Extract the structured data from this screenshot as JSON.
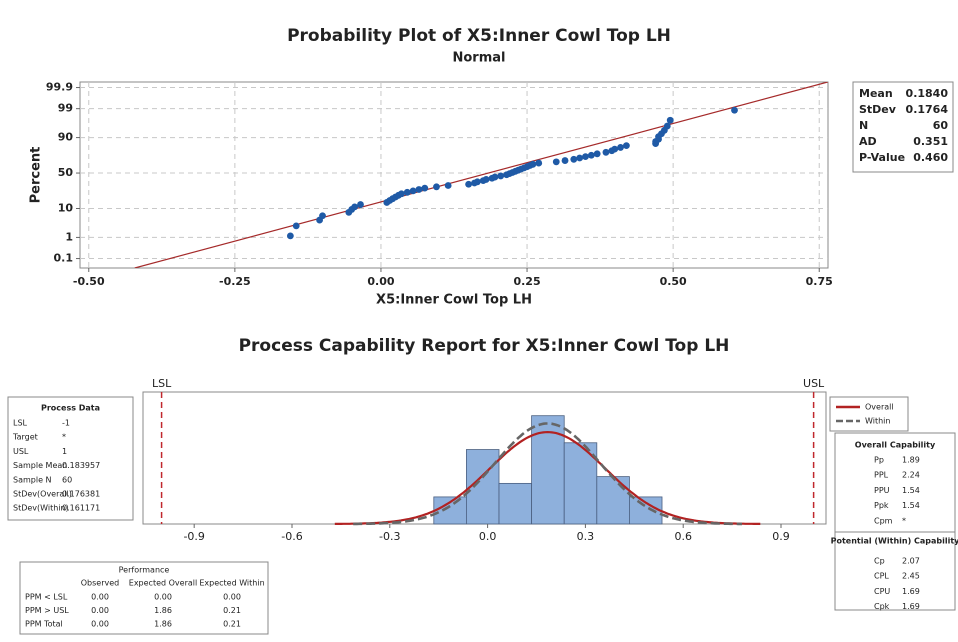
{
  "chart_data": [
    {
      "type": "probability",
      "title": "Probability Plot of X5:Inner Cowl Top LH",
      "subtitle": "Normal",
      "xlabel": "X5:Inner Cowl Top LH",
      "ylabel": "Percent",
      "xlim": [
        -0.515,
        0.765
      ],
      "ylim": [
        0.03,
        99.95
      ],
      "xticks": [
        {
          "value": -0.5,
          "label": "-0.50"
        },
        {
          "value": -0.25,
          "label": "-0.25"
        },
        {
          "value": 0,
          "label": "0.00"
        },
        {
          "value": 0.25,
          "label": "0.25"
        },
        {
          "value": 0.5,
          "label": "0.50"
        },
        {
          "value": 0.75,
          "label": "0.75"
        }
      ],
      "yticks": [
        0.1,
        1,
        10,
        50,
        90,
        99,
        99.9
      ],
      "grid": true,
      "point_color": "#1f5aa6",
      "fit_color": "#a52a2a",
      "x": [
        -0.155,
        -0.145,
        -0.105,
        -0.1,
        -0.055,
        -0.05,
        -0.045,
        -0.035,
        0.01,
        0.015,
        0.02,
        0.025,
        0.03,
        0.035,
        0.045,
        0.055,
        0.065,
        0.075,
        0.095,
        0.115,
        0.15,
        0.16,
        0.165,
        0.175,
        0.18,
        0.19,
        0.195,
        0.205,
        0.215,
        0.22,
        0.225,
        0.23,
        0.235,
        0.24,
        0.245,
        0.25,
        0.255,
        0.26,
        0.27,
        0.3,
        0.315,
        0.33,
        0.34,
        0.35,
        0.36,
        0.37,
        0.385,
        0.395,
        0.4,
        0.41,
        0.42,
        0.47,
        0.47,
        0.475,
        0.475,
        0.48,
        0.485,
        0.49,
        0.495,
        0.605
      ],
      "values": [
        1.16,
        2.81,
        4.47,
        6.13,
        7.78,
        9.44,
        11.09,
        12.75,
        14.4,
        16.06,
        17.72,
        19.37,
        21.03,
        22.68,
        24.34,
        25.99,
        27.65,
        29.3,
        30.96,
        32.62,
        34.27,
        35.93,
        37.58,
        39.24,
        40.89,
        42.55,
        44.21,
        45.86,
        47.52,
        49.17,
        50.83,
        52.48,
        54.14,
        55.79,
        57.45,
        59.11,
        60.76,
        62.42,
        64.07,
        65.73,
        67.38,
        69.04,
        70.7,
        72.35,
        74.01,
        75.66,
        77.32,
        78.97,
        80.63,
        82.28,
        83.94,
        85.6,
        87.25,
        88.91,
        90.56,
        92.22,
        93.87,
        95.53,
        97.19,
        98.84
      ],
      "stats": [
        {
          "name": "Mean",
          "value": 0.184,
          "label": "0.1840"
        },
        {
          "name": "StDev",
          "value": 0.1764,
          "label": "0.1764"
        },
        {
          "name": "N",
          "value": 60,
          "label": "60"
        },
        {
          "name": "AD",
          "value": 0.351,
          "label": "0.351"
        },
        {
          "name": "P-Value",
          "value": 0.46,
          "label": "0.460"
        }
      ]
    },
    {
      "type": "histogram",
      "title": "Process Capability Report for X5:Inner Cowl Top LH",
      "xlim": [
        -1.057,
        1.038
      ],
      "ylim": [
        0,
        19.5
      ],
      "xticks": [
        -0.9,
        -0.6,
        -0.3,
        {
          "value": 0,
          "label": "0.0"
        },
        0.3,
        0.6,
        0.9
      ],
      "bins": [
        -0.165,
        -0.065,
        0.035,
        0.135,
        0.235,
        0.335,
        0.435,
        0.535
      ],
      "values": [
        4,
        11,
        6,
        16,
        12,
        7,
        4
      ],
      "color": "#8eb0dc",
      "spec_limits": [
        {
          "label": "LSL",
          "value": -1,
          "color": "#c0282d"
        },
        {
          "label": "USL",
          "value": 1,
          "color": "#c0282d"
        }
      ],
      "series": [
        {
          "name": "Overall",
          "color": "#b22222",
          "dashed": false,
          "mean": 0.183957,
          "stdev": 0.176381
        },
        {
          "name": "Within",
          "color": "#666666",
          "dashed": true,
          "mean": 0.183957,
          "stdev": 0.161171
        }
      ],
      "process_data": {
        "title": "Process Data",
        "rows": [
          [
            "LSL",
            "-1"
          ],
          [
            "Target",
            "*"
          ],
          [
            "USL",
            "1"
          ],
          [
            "Sample Mean",
            "0.183957"
          ],
          [
            "Sample N",
            "60"
          ],
          [
            "StDev(Overall)",
            "0.176381"
          ],
          [
            "StDev(Within)",
            "0.161171"
          ]
        ]
      },
      "overall_capability": {
        "title": "Overall Capability",
        "rows": [
          [
            "Pp",
            "1.89"
          ],
          [
            "PPL",
            "2.24"
          ],
          [
            "PPU",
            "1.54"
          ],
          [
            "Ppk",
            "1.54"
          ],
          [
            "Cpm",
            "*"
          ]
        ]
      },
      "within_capability": {
        "title": "Potential (Within) Capability",
        "rows": [
          [
            "Cp",
            "2.07"
          ],
          [
            "CPL",
            "2.45"
          ],
          [
            "CPU",
            "1.69"
          ],
          [
            "Cpk",
            "1.69"
          ]
        ]
      },
      "performance": {
        "title": "Performance",
        "columns": [
          "Observed",
          "Expected Overall",
          "Expected Within"
        ],
        "rows": [
          [
            "PPM < LSL",
            "0.00",
            "0.00",
            "0.00"
          ],
          [
            "PPM > USL",
            "0.00",
            "1.86",
            "0.21"
          ],
          [
            "PPM Total",
            "0.00",
            "1.86",
            "0.21"
          ]
        ]
      }
    }
  ]
}
